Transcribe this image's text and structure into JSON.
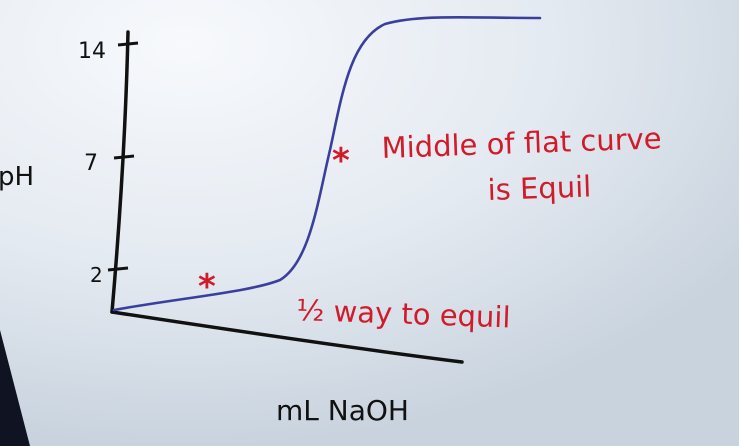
{
  "colors": {
    "board": "#dfe6ee",
    "axis_ink": "#111111",
    "curve_ink": "#3a3f9e",
    "marker_ink": "#d11a2a",
    "note_ink": "#d11a2a"
  },
  "y_axis": {
    "label": "pH",
    "ticks": [
      "14",
      "7",
      "2"
    ]
  },
  "x_axis": {
    "label": "mL NaOH"
  },
  "markers": {
    "half_equivalence": "*",
    "equivalence": "*"
  },
  "annotations": {
    "equivalence_line1": "Middle of flat curve",
    "equivalence_line2": "is Equil",
    "half_equivalence": "½ way to equil"
  }
}
